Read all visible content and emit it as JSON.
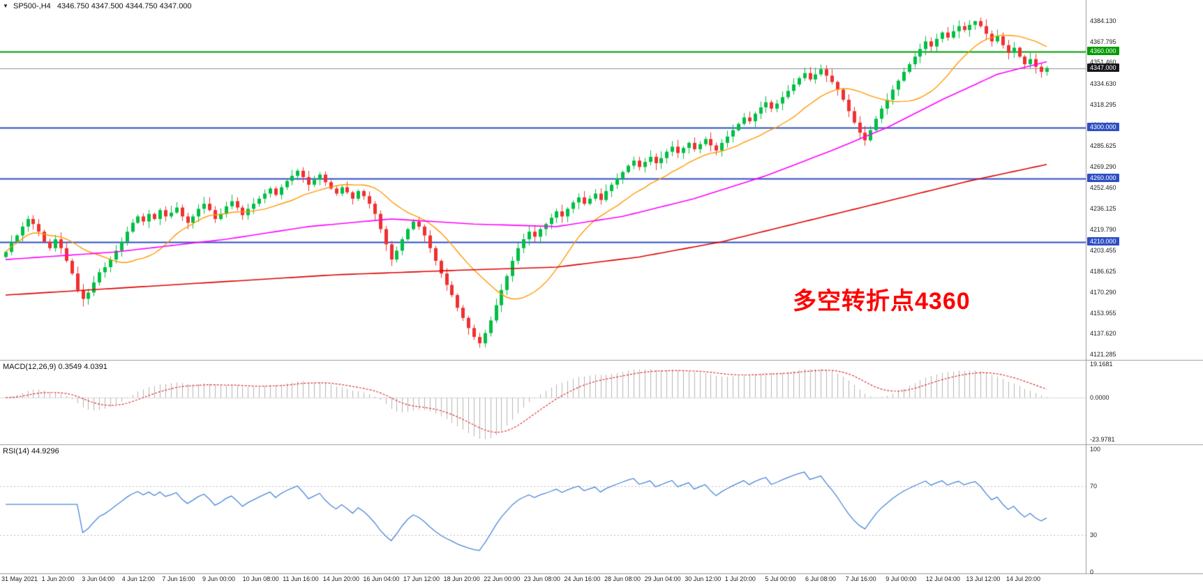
{
  "header": {
    "symbol": "SP500-,H4",
    "ohlc": "4346.750 4347.500 4344.750 4347.000"
  },
  "icons": {
    "collapse_marker": "▼"
  },
  "annotation": {
    "text": "多空转折点4360",
    "color": "#ff0000"
  },
  "colors": {
    "bull": "#00bf44",
    "bear": "#f03030",
    "ma_fast": "#ff9900",
    "ma_mid": "#ff00ff",
    "ma_slow": "#e00000",
    "macd_hist": "#b4b4b4",
    "macd_signal": "#e03030",
    "rsi_line": "#4a86d8",
    "separator": "#9a9a9a",
    "current_price_tag": "#17171c"
  },
  "chart_data": [
    {
      "type": "candlestick",
      "title": "SP500-,H4",
      "ylim": [
        4117,
        4400
      ],
      "y_ticks": [
        "4384.130",
        "4367.795",
        "4351.460",
        "4334.630",
        "4318.295",
        "4301.960",
        "4285.625",
        "4269.290",
        "4252.460",
        "4236.125",
        "4219.790",
        "4203.455",
        "4186.625",
        "4170.290",
        "4153.955",
        "4137.620",
        "4121.285"
      ],
      "closes": [
        4202,
        4210,
        4215,
        4222,
        4228,
        4224,
        4218,
        4210,
        4205,
        4212,
        4205,
        4195,
        4185,
        4172,
        4165,
        4170,
        4178,
        4186,
        4190,
        4196,
        4203,
        4210,
        4218,
        4225,
        4230,
        4226,
        4232,
        4228,
        4235,
        4230,
        4233,
        4237,
        4230,
        4225,
        4230,
        4236,
        4240,
        4235,
        4228,
        4232,
        4238,
        4242,
        4237,
        4231,
        4236,
        4240,
        4244,
        4248,
        4252,
        4247,
        4253,
        4258,
        4262,
        4266,
        4261,
        4255,
        4259,
        4263,
        4257,
        4252,
        4248,
        4253,
        4249,
        4244,
        4250,
        4246,
        4240,
        4232,
        4220,
        4208,
        4196,
        4203,
        4212,
        4220,
        4226,
        4222,
        4215,
        4205,
        4195,
        4185,
        4176,
        4168,
        4158,
        4150,
        4142,
        4135,
        4130,
        4138,
        4148,
        4160,
        4172,
        4183,
        4195,
        4205,
        4212,
        4218,
        4214,
        4220,
        4224,
        4229,
        4234,
        4230,
        4236,
        4241,
        4245,
        4240,
        4244,
        4248,
        4243,
        4250,
        4255,
        4260,
        4265,
        4270,
        4274,
        4269,
        4273,
        4277,
        4272,
        4276,
        4281,
        4285,
        4280,
        4284,
        4288,
        4283,
        4287,
        4291,
        4286,
        4282,
        4288,
        4293,
        4298,
        4303,
        4308,
        4305,
        4311,
        4316,
        4320,
        4315,
        4319,
        4324,
        4329,
        4334,
        4339,
        4343,
        4338,
        4342,
        4346,
        4341,
        4336,
        4330,
        4322,
        4313,
        4304,
        4296,
        4290,
        4298,
        4307,
        4315,
        4322,
        4330,
        4337,
        4344,
        4350,
        4356,
        4362,
        4368,
        4364,
        4370,
        4375,
        4371,
        4376,
        4380,
        4377,
        4381,
        4384,
        4380,
        4374,
        4368,
        4372,
        4365,
        4359,
        4363,
        4356,
        4350,
        4354,
        4348,
        4344,
        4347
      ],
      "wick_low_overrides": {
        "14": 4159,
        "86": 4126.5
      },
      "wick_high_overrides": {
        "53": 4267.5,
        "176": 4384.1
      },
      "overlays": {
        "ma_fast": {
          "type": "sma",
          "period": 16,
          "color": "#ff9900"
        },
        "ma_mid": {
          "color": "#ff00ff",
          "anchors": [
            [
              0,
              4196
            ],
            [
              20,
              4202
            ],
            [
              40,
              4212
            ],
            [
              55,
              4222
            ],
            [
              70,
              4228
            ],
            [
              85,
              4224
            ],
            [
              100,
              4222
            ],
            [
              112,
              4230
            ],
            [
              125,
              4244
            ],
            [
              138,
              4262
            ],
            [
              150,
              4282
            ],
            [
              160,
              4300
            ],
            [
              170,
              4322
            ],
            [
              180,
              4342
            ],
            [
              189,
              4352
            ]
          ]
        },
        "ma_slow": {
          "color": "#e00000",
          "anchors": [
            [
              0,
              4168
            ],
            [
              30,
              4176
            ],
            [
              60,
              4184
            ],
            [
              85,
              4188
            ],
            [
              100,
              4190
            ],
            [
              115,
              4198
            ],
            [
              130,
              4210
            ],
            [
              145,
              4226
            ],
            [
              160,
              4242
            ],
            [
              175,
              4258
            ],
            [
              189,
              4271
            ]
          ]
        }
      },
      "hlines": [
        {
          "value": 4360.0,
          "label": "4360.000",
          "color": "#009b00",
          "width": 2
        },
        {
          "value": 4300.0,
          "label": "4300.000",
          "color": "#2e4fc4",
          "width": 2
        },
        {
          "value": 4260.0,
          "label": "4260.000",
          "color": "#2e4fc4",
          "width": 2
        },
        {
          "value": 4210.0,
          "label": "4210.000",
          "color": "#2e4fc4",
          "width": 2
        }
      ],
      "current_price": {
        "value": 4347.0,
        "label": "4347.000",
        "line_color": "#8c8c8c",
        "label_bg": "#17171c"
      }
    },
    {
      "type": "bar",
      "label": "MACD(12,26,9) 0.3549 4.0391",
      "derived_from": "closes",
      "fast": 12,
      "slow": 26,
      "signal": 9,
      "current_macd": 0.3549,
      "current_signal": 4.0391,
      "ylim": [
        -26.8,
        21.2
      ],
      "y_ticks": [
        "19.1681",
        "0.0000",
        "-23.9781"
      ]
    },
    {
      "type": "line",
      "label": "RSI(14) 44.9296",
      "period": 14,
      "current": 44.9296,
      "ylim": [
        0,
        100
      ],
      "levels": [
        70,
        30
      ],
      "y_ticks": [
        "100",
        "70",
        "30",
        "0"
      ]
    }
  ],
  "x_axis": {
    "labels": [
      "31 May 2021",
      "1 Jun 20:00",
      "3 Jun 04:00",
      "4 Jun 12:00",
      "7 Jun 16:00",
      "9 Jun 00:00",
      "10 Jun 08:00",
      "11 Jun 16:00",
      "14 Jun 20:00",
      "16 Jun 04:00",
      "17 Jun 12:00",
      "18 Jun 20:00",
      "22 Jun 00:00",
      "23 Jun 08:00",
      "24 Jun 16:00",
      "28 Jun 08:00",
      "29 Jun 04:00",
      "30 Jun 12:00",
      "1 Jul 20:00",
      "5 Jul 00:00",
      "6 Jul 08:00",
      "7 Jul 16:00",
      "9 Jul 00:00",
      "12 Jul 04:00",
      "13 Jul 12:00",
      "14 Jul 20:00"
    ]
  }
}
